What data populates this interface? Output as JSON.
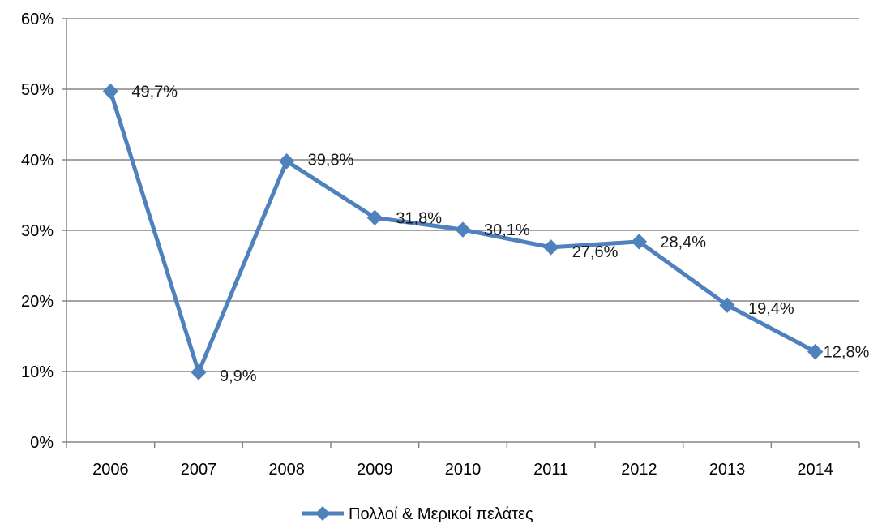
{
  "chart_data": {
    "type": "line",
    "categories": [
      "2006",
      "2007",
      "2008",
      "2009",
      "2010",
      "2011",
      "2012",
      "2013",
      "2014"
    ],
    "series": [
      {
        "name": "Πολλοί & Μερικοί πελάτες",
        "values": [
          49.7,
          9.9,
          39.8,
          31.8,
          30.1,
          27.6,
          28.4,
          19.4,
          12.8
        ],
        "data_labels": [
          "49,7%",
          "9,9%",
          "39,8%",
          "31,8%",
          "30,1%",
          "27,6%",
          "28,4%",
          "19,4%",
          "12,8%"
        ],
        "color": "#4f81bd",
        "marker": "diamond"
      }
    ],
    "ylim": [
      0,
      60
    ],
    "yticks": [
      0,
      10,
      20,
      30,
      40,
      50,
      60
    ],
    "ytick_labels": [
      "0%",
      "10%",
      "20%",
      "30%",
      "40%",
      "50%",
      "60%"
    ],
    "grid": true,
    "grid_color": "#868686",
    "legend_position": "bottom"
  }
}
